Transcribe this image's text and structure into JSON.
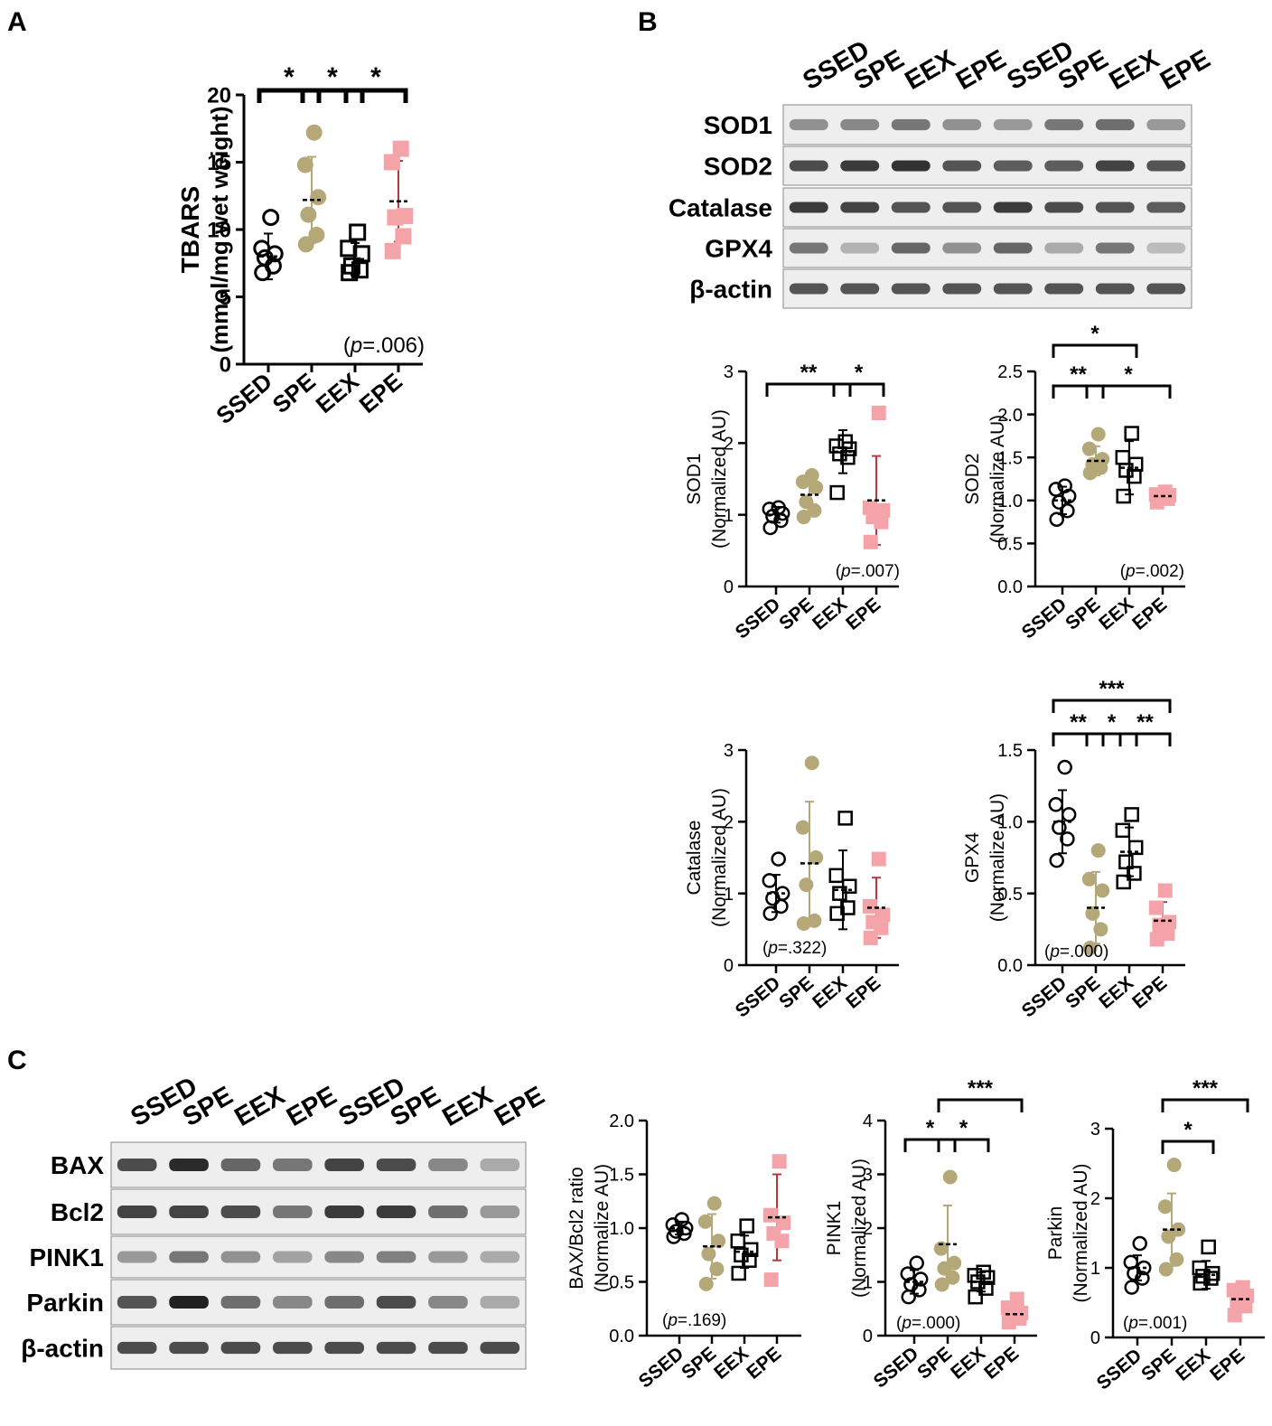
{
  "colors": {
    "SSED": "#000000",
    "SPE": "#b5a878",
    "EEX": "#000000",
    "EPE": "#f4a3a8",
    "EPE_err": "#b4393f"
  },
  "panels": {
    "A": "A",
    "B": "B",
    "C": "C"
  },
  "blot_b": {
    "lanes": [
      "SSED",
      "SPE",
      "EEX",
      "EPE",
      "SSED",
      "SPE",
      "EEX",
      "EPE"
    ],
    "rows": [
      "SOD1",
      "SOD2",
      "Catalase",
      "GPX4",
      "β-actin"
    ]
  },
  "blot_c": {
    "lanes": [
      "SSED",
      "SPE",
      "EEX",
      "EPE",
      "SSED",
      "SPE",
      "EEX",
      "EPE"
    ],
    "rows": [
      "BAX",
      "Bcl2",
      "PINK1",
      "Parkin",
      "β-actin"
    ]
  },
  "chart_data": [
    {
      "id": "tbars",
      "type": "scatter",
      "ylabel": [
        "TBARS",
        "(mmol/mg wet weight)"
      ],
      "categories": [
        "SSED",
        "SPE",
        "EEX",
        "EPE"
      ],
      "ylim": [
        0,
        20
      ],
      "ticks": [
        0,
        5,
        10,
        15,
        20
      ],
      "pvalue": [
        "(",
        "p",
        "=.006)"
      ],
      "groups": [
        {
          "name": "SSED",
          "points": [
            6.8,
            7.3,
            7.9,
            8.2,
            8.6,
            10.9
          ],
          "mean": 8.0,
          "sd": 1.7
        },
        {
          "name": "SPE",
          "points": [
            8.9,
            9.6,
            11.1,
            12.4,
            14.8,
            17.2
          ],
          "mean": 12.2,
          "sd": 3.2
        },
        {
          "name": "EEX",
          "points": [
            6.8,
            7.0,
            7.3,
            8.2,
            8.6,
            9.8
          ],
          "mean": 7.8,
          "sd": 1.2
        },
        {
          "name": "EPE",
          "points": [
            8.4,
            9.5,
            10.9,
            11.0,
            15.0,
            16.0
          ],
          "mean": 12.1,
          "sd": 3.0
        }
      ],
      "sig": [
        {
          "from": 0,
          "to": 1,
          "label": "*"
        },
        {
          "from": 1,
          "to": 2,
          "label": "*"
        },
        {
          "from": 2,
          "to": 3,
          "label": "*"
        }
      ]
    },
    {
      "id": "sod1",
      "type": "scatter",
      "ylabel": [
        "SOD1",
        "(Normalized AU)"
      ],
      "categories": [
        "SSED",
        "SPE",
        "EEX",
        "EPE"
      ],
      "ylim": [
        0,
        3
      ],
      "ticks": [
        0,
        1,
        2,
        3
      ],
      "pvalue": [
        "(",
        "p",
        "=.007)"
      ],
      "groups": [
        {
          "name": "SSED",
          "points": [
            0.82,
            0.92,
            0.98,
            1.02,
            1.08,
            1.1
          ],
          "mean": 1.0,
          "sd": 0.11
        },
        {
          "name": "SPE",
          "points": [
            0.97,
            1.06,
            1.18,
            1.38,
            1.46,
            1.55
          ],
          "mean": 1.28,
          "sd": 0.24
        },
        {
          "name": "EEX",
          "points": [
            1.31,
            1.8,
            1.85,
            1.92,
            1.96,
            2.02
          ],
          "mean": 1.88,
          "sd": 0.3
        },
        {
          "name": "EPE",
          "points": [
            0.62,
            0.9,
            0.97,
            1.06,
            1.1,
            2.42
          ],
          "mean": 1.2,
          "sd": 0.62
        }
      ],
      "sig": [
        {
          "from": 0,
          "to": 2,
          "label": "**",
          "level": 0
        },
        {
          "from": 2,
          "to": 3,
          "label": "*",
          "level": 0
        }
      ]
    },
    {
      "id": "sod2",
      "type": "scatter",
      "ylabel": [
        "SOD2",
        "(Normalize AU)"
      ],
      "categories": [
        "SSED",
        "SPE",
        "EEX",
        "EPE"
      ],
      "ylim": [
        0,
        2.5
      ],
      "ticks": [
        0,
        0.5,
        1.0,
        1.5,
        2.0,
        2.5
      ],
      "pvalue": [
        "(",
        "p",
        "=.002)"
      ],
      "groups": [
        {
          "name": "SSED",
          "points": [
            0.78,
            0.88,
            0.98,
            1.05,
            1.13,
            1.17
          ],
          "mean": 1.0,
          "sd": 0.16
        },
        {
          "name": "SPE",
          "points": [
            1.32,
            1.38,
            1.42,
            1.48,
            1.6,
            1.77
          ],
          "mean": 1.46,
          "sd": 0.17
        },
        {
          "name": "EEX",
          "points": [
            1.05,
            1.28,
            1.35,
            1.42,
            1.5,
            1.78
          ],
          "mean": 1.38,
          "sd": 0.31
        },
        {
          "name": "EPE",
          "points": [
            0.98,
            1.02,
            1.04,
            1.06,
            1.07,
            1.1
          ],
          "mean": 1.05,
          "sd": 0.05
        }
      ],
      "sig": [
        {
          "from": 0,
          "to": 1,
          "label": "**",
          "level": 0
        },
        {
          "from": 1,
          "to": 3,
          "label": "*",
          "level": 0
        },
        {
          "from": 0,
          "to": 2,
          "label": "*",
          "level": 1
        }
      ]
    },
    {
      "id": "catalase",
      "type": "scatter",
      "ylabel": [
        "Catalase",
        "(Normalized AU)"
      ],
      "categories": [
        "SSED",
        "SPE",
        "EEX",
        "EPE"
      ],
      "ylim": [
        0,
        3
      ],
      "ticks": [
        0,
        1,
        2,
        3
      ],
      "pvalue": [
        "(",
        "p",
        "=.322)"
      ],
      "groups": [
        {
          "name": "SSED",
          "points": [
            0.72,
            0.82,
            0.93,
            1.0,
            1.18,
            1.48
          ],
          "mean": 1.0,
          "sd": 0.26
        },
        {
          "name": "SPE",
          "points": [
            0.58,
            0.62,
            1.12,
            1.5,
            1.92,
            2.82
          ],
          "mean": 1.42,
          "sd": 0.86
        },
        {
          "name": "EEX",
          "points": [
            0.72,
            0.8,
            1.0,
            1.1,
            1.25,
            2.05
          ],
          "mean": 1.05,
          "sd": 0.55
        },
        {
          "name": "EPE",
          "points": [
            0.38,
            0.52,
            0.6,
            0.7,
            0.82,
            1.48
          ],
          "mean": 0.8,
          "sd": 0.42
        }
      ],
      "sig": []
    },
    {
      "id": "gpx4",
      "type": "scatter",
      "ylabel": [
        "GPX4",
        "(Normalize AU)"
      ],
      "categories": [
        "SSED",
        "SPE",
        "EEX",
        "EPE"
      ],
      "ylim": [
        0,
        1.5
      ],
      "ticks": [
        0,
        0.5,
        1.0,
        1.5
      ],
      "pvalue": [
        "(",
        "p",
        "=.000)"
      ],
      "groups": [
        {
          "name": "SSED",
          "points": [
            0.73,
            0.88,
            0.96,
            1.05,
            1.12,
            1.38
          ],
          "mean": 1.0,
          "sd": 0.22
        },
        {
          "name": "SPE",
          "points": [
            0.12,
            0.25,
            0.36,
            0.52,
            0.6,
            0.8
          ],
          "mean": 0.4,
          "sd": 0.25
        },
        {
          "name": "EEX",
          "points": [
            0.58,
            0.64,
            0.72,
            0.82,
            0.94,
            1.05
          ],
          "mean": 0.79,
          "sd": 0.17
        },
        {
          "name": "EPE",
          "points": [
            0.18,
            0.22,
            0.28,
            0.3,
            0.4,
            0.52
          ],
          "mean": 0.31,
          "sd": 0.13
        }
      ],
      "sig": [
        {
          "from": 0,
          "to": 1,
          "label": "**",
          "level": 0
        },
        {
          "from": 1,
          "to": 2,
          "label": "*",
          "level": 0
        },
        {
          "from": 2,
          "to": 3,
          "label": "**",
          "level": 0
        },
        {
          "from": 0,
          "to": 3,
          "label": "***",
          "level": 1
        }
      ]
    },
    {
      "id": "baxbcl2",
      "type": "scatter",
      "ylabel": [
        "BAX/Bcl2 ratio",
        "(Normalize AU)"
      ],
      "categories": [
        "SSED",
        "SPE",
        "EEX",
        "EPE"
      ],
      "ylim": [
        0,
        2.0
      ],
      "ticks": [
        0.0,
        0.5,
        1.0,
        1.5,
        2.0
      ],
      "pvalue": [
        "(",
        "p",
        "=.169)"
      ],
      "groups": [
        {
          "name": "SSED",
          "points": [
            0.92,
            0.95,
            0.97,
            1.0,
            1.03,
            1.08
          ],
          "mean": 1.0,
          "sd": 0.06
        },
        {
          "name": "SPE",
          "points": [
            0.48,
            0.62,
            0.76,
            0.88,
            1.06,
            1.23
          ],
          "mean": 0.83,
          "sd": 0.3
        },
        {
          "name": "EEX",
          "points": [
            0.58,
            0.7,
            0.75,
            0.8,
            0.88,
            1.02
          ],
          "mean": 0.78,
          "sd": 0.15
        },
        {
          "name": "EPE",
          "points": [
            0.52,
            0.88,
            0.95,
            1.05,
            1.12,
            1.62
          ],
          "mean": 1.1,
          "sd": 0.4
        }
      ],
      "sig": []
    },
    {
      "id": "pink1",
      "type": "scatter",
      "ylabel": [
        "PINK1",
        "(Normalized AU)"
      ],
      "categories": [
        "SSED",
        "SPE",
        "EEX",
        "EPE"
      ],
      "ylim": [
        0,
        4
      ],
      "ticks": [
        0,
        1,
        2,
        3,
        4
      ],
      "pvalue": [
        "(",
        "p",
        "=.000)"
      ],
      "groups": [
        {
          "name": "SSED",
          "points": [
            0.72,
            0.85,
            0.95,
            1.05,
            1.15,
            1.35
          ],
          "mean": 1.0,
          "sd": 0.22
        },
        {
          "name": "SPE",
          "points": [
            0.95,
            1.08,
            1.25,
            1.35,
            1.62,
            2.95
          ],
          "mean": 1.7,
          "sd": 0.72
        },
        {
          "name": "EEX",
          "points": [
            0.72,
            0.88,
            1.0,
            1.08,
            1.12,
            1.18
          ],
          "mean": 1.0,
          "sd": 0.18
        },
        {
          "name": "EPE",
          "points": [
            0.25,
            0.32,
            0.38,
            0.42,
            0.52,
            0.68
          ],
          "mean": 0.4,
          "sd": 0.16
        }
      ],
      "sig": [
        {
          "from": 0,
          "to": 1,
          "label": "*",
          "level": 0
        },
        {
          "from": 1,
          "to": 2,
          "label": "*",
          "level": 0
        },
        {
          "from": 1,
          "to": 3,
          "label": "***",
          "level": 1
        }
      ]
    },
    {
      "id": "parkin",
      "type": "scatter",
      "ylabel": [
        "Parkin",
        "(Normalized AU)"
      ],
      "categories": [
        "SSED",
        "SPE",
        "EEX",
        "EPE"
      ],
      "ylim": [
        0,
        3
      ],
      "ticks": [
        0,
        1,
        2,
        3
      ],
      "pvalue": [
        "(",
        "p",
        "=.001)"
      ],
      "groups": [
        {
          "name": "SSED",
          "points": [
            0.72,
            0.85,
            0.92,
            1.0,
            1.08,
            1.35
          ],
          "mean": 1.0,
          "sd": 0.18
        },
        {
          "name": "SPE",
          "points": [
            0.98,
            1.12,
            1.45,
            1.55,
            1.88,
            2.48
          ],
          "mean": 1.55,
          "sd": 0.52
        },
        {
          "name": "EEX",
          "points": [
            0.78,
            0.85,
            0.88,
            0.92,
            1.0,
            1.3
          ],
          "mean": 0.9,
          "sd": 0.2
        },
        {
          "name": "EPE",
          "points": [
            0.32,
            0.45,
            0.52,
            0.6,
            0.68,
            0.72
          ],
          "mean": 0.55,
          "sd": 0.15
        }
      ],
      "sig": [
        {
          "from": 1,
          "to": 2,
          "label": "*",
          "level": 0
        },
        {
          "from": 1,
          "to": 3,
          "label": "***",
          "level": 1
        }
      ]
    }
  ]
}
